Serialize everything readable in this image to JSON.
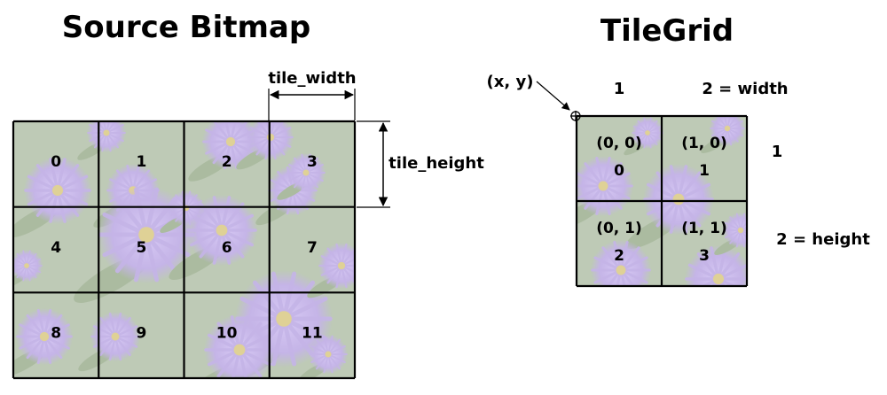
{
  "source_bitmap": {
    "title": "Source Bitmap",
    "tile_width_label": "tile_width",
    "tile_height_label": "tile_height",
    "tiles": [
      "0",
      "1",
      "2",
      "3",
      "4",
      "5",
      "6",
      "7",
      "8",
      "9",
      "10",
      "11"
    ]
  },
  "tilegrid": {
    "title": "TileGrid",
    "origin_label": "(x, y)",
    "col_labels": [
      "1",
      "2 = width"
    ],
    "row_labels": [
      "1",
      "2 = height"
    ],
    "cells": [
      {
        "coord": "(0, 0)",
        "tile": "0"
      },
      {
        "coord": "(1, 0)",
        "tile": "1"
      },
      {
        "coord": "(0, 1)",
        "tile": "2"
      },
      {
        "coord": "(1, 1)",
        "tile": "3"
      }
    ]
  },
  "colors": {
    "flower": "#9b7fd6",
    "flower_center": "#c9b04a",
    "foliage": "#8aa07a",
    "tile_wash": "#eef0ea",
    "grid_line": "#000000"
  }
}
